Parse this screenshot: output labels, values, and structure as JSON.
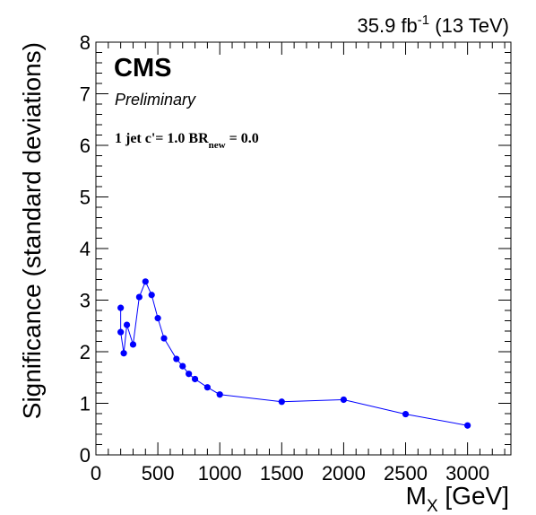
{
  "chart_data": {
    "type": "line",
    "lumi_label": "35.9 fb",
    "lumi_exp": "-1",
    "energy_label": " (13 TeV)",
    "experiment": "CMS",
    "status": "Preliminary",
    "annotation": {
      "prefix": "1 jet c'= 1.0 BR",
      "subscript": "new",
      "suffix": " = 0.0"
    },
    "xlabel": "M",
    "xlabel_sub": "X",
    "xlabel_unit": " [GeV]",
    "ylabel": "Significance (standard deviations)",
    "xlim": [
      0,
      3350
    ],
    "ylim": [
      0,
      8
    ],
    "x_ticks": [
      0,
      500,
      1000,
      1500,
      2000,
      2500,
      3000
    ],
    "y_ticks": [
      0,
      1,
      2,
      3,
      4,
      5,
      6,
      7,
      8
    ],
    "line_color": "#0000ff",
    "series": [
      {
        "x": [
          200,
          200,
          225,
          250,
          300,
          350,
          400,
          450,
          500,
          550,
          650,
          700,
          750,
          800,
          900,
          1000,
          1500,
          2000,
          2500,
          3000
        ],
        "y": [
          2.85,
          2.38,
          1.97,
          2.52,
          2.14,
          3.06,
          3.36,
          3.1,
          2.65,
          2.26,
          1.86,
          1.72,
          1.57,
          1.47,
          1.31,
          1.17,
          1.03,
          1.07,
          0.79,
          0.57
        ]
      }
    ]
  }
}
